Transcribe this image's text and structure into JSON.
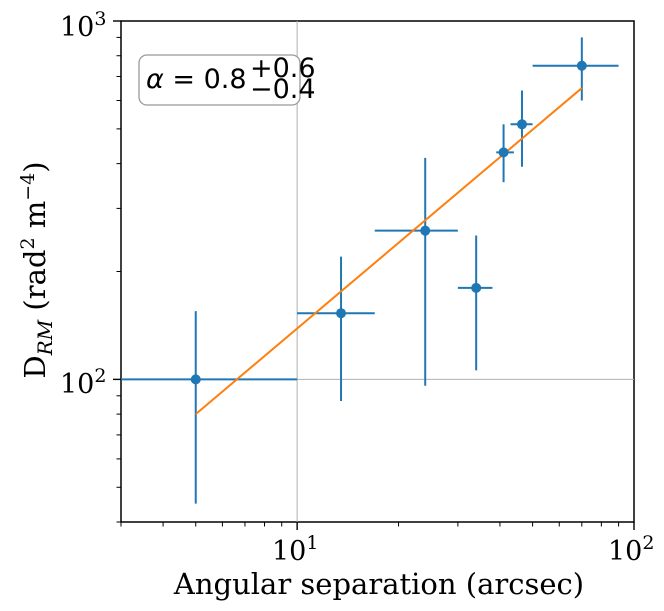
{
  "chart_data": {
    "type": "scatter",
    "title": "",
    "xlabel": "Angular separation (arcsec)",
    "ylabel": "D_RM (rad^2 m^-4)",
    "xscale": "log",
    "yscale": "log",
    "xlim": [
      3,
      100
    ],
    "ylim": [
      40,
      1000
    ],
    "grid": "lines at x=10 and y=100",
    "x_tick_labels": [
      "10^1",
      "10^2"
    ],
    "y_tick_labels": [
      "10^2",
      "10^3"
    ],
    "annotation": "α = 0.8 (+0.6 / −0.4)",
    "annotation_placement": "top-left",
    "colors": {
      "points": "#1f77b4",
      "fit": "#ff7f0e",
      "grid": "#b0b0b0"
    },
    "series": [
      {
        "kind": "errorbar",
        "points": [
          {
            "x": 5,
            "y": 100,
            "xlo": 3,
            "xhi": 10,
            "ylo": 45,
            "yhi": 155
          },
          {
            "x": 13.5,
            "y": 153,
            "xlo": 10,
            "xhi": 17,
            "ylo": 87,
            "yhi": 220
          },
          {
            "x": 24,
            "y": 260,
            "xlo": 17,
            "xhi": 30,
            "ylo": 96,
            "yhi": 415
          },
          {
            "x": 34,
            "y": 180,
            "xlo": 30,
            "xhi": 38,
            "ylo": 106,
            "yhi": 252
          },
          {
            "x": 41,
            "y": 430,
            "xlo": 39,
            "xhi": 44,
            "ylo": 355,
            "yhi": 515
          },
          {
            "x": 46.5,
            "y": 515,
            "xlo": 43,
            "xhi": 50,
            "ylo": 392,
            "yhi": 640
          },
          {
            "x": 70,
            "y": 750,
            "xlo": 50,
            "xhi": 90,
            "ylo": 600,
            "yhi": 900
          }
        ]
      },
      {
        "kind": "fit",
        "x": [
          5,
          70
        ],
        "y": [
          80,
          650
        ]
      }
    ]
  },
  "annotation": {
    "alpha": "α",
    "equals": " = 0.8",
    "sup": "+0.6",
    "sub": "−0.4"
  },
  "labels": {
    "x_base": "10",
    "x_exp_1": "1",
    "x_exp_2": "2",
    "y_base": "10",
    "y_exp_2": "2",
    "y_exp_3": "3",
    "xlabel": "Angular separation (arcsec)",
    "ylabel_main": "D",
    "ylabel_sub": "RM",
    "ylabel_rest1": " (rad",
    "ylabel_sup2": "2",
    "ylabel_rest2": " m",
    "ylabel_sup4": "−4",
    "ylabel_rest3": ")"
  }
}
